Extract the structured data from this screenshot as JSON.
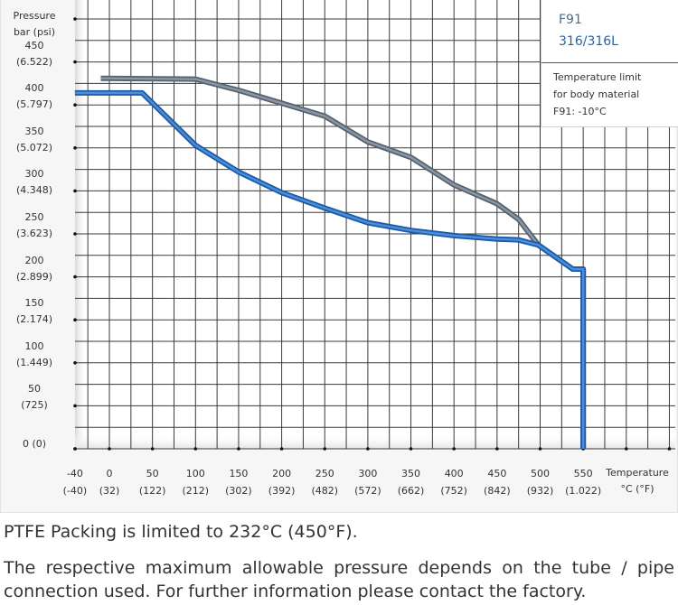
{
  "chart_data": {
    "type": "line",
    "title": "",
    "xlabel": "Temperature °C (°F)",
    "ylabel": "Pressure bar (psi)",
    "xlim": [
      -40,
      650
    ],
    "ylim": [
      0,
      520
    ],
    "grid": true,
    "grid_step_x": 25,
    "grid_step_y": 25,
    "legend_position": "top-right",
    "x_ticks": [
      {
        "c": "-40",
        "f": "(-40)",
        "value": -40
      },
      {
        "c": "0",
        "f": "(32)",
        "value": 0
      },
      {
        "c": "50",
        "f": "(122)",
        "value": 50
      },
      {
        "c": "100",
        "f": "(212)",
        "value": 100
      },
      {
        "c": "150",
        "f": "(302)",
        "value": 150
      },
      {
        "c": "200",
        "f": "(392)",
        "value": 200
      },
      {
        "c": "250",
        "f": "(482)",
        "value": 250
      },
      {
        "c": "300",
        "f": "(572)",
        "value": 300
      },
      {
        "c": "350",
        "f": "(662)",
        "value": 350
      },
      {
        "c": "400",
        "f": "(752)",
        "value": 400
      },
      {
        "c": "450",
        "f": "(842)",
        "value": 450
      },
      {
        "c": "500",
        "f": "(932)",
        "value": 500
      },
      {
        "c": "550",
        "f": "(1.022)",
        "value": 550
      }
    ],
    "y_ticks": [
      {
        "bar": "450",
        "psi": "(6.522)",
        "value": 450
      },
      {
        "bar": "400",
        "psi": "(5.797)",
        "value": 400
      },
      {
        "bar": "350",
        "psi": "(5.072)",
        "value": 350
      },
      {
        "bar": "300",
        "psi": "(4.348)",
        "value": 300
      },
      {
        "bar": "250",
        "psi": "(3.623)",
        "value": 250
      },
      {
        "bar": "200",
        "psi": "(2.899)",
        "value": 200
      },
      {
        "bar": "150",
        "psi": "(2.174)",
        "value": 150
      },
      {
        "bar": "100",
        "psi": "(1.449)",
        "value": 100
      },
      {
        "bar": "50",
        "psi": "(725)",
        "value": 50
      },
      {
        "bar": "0 (0)",
        "psi": "",
        "value": 0
      }
    ],
    "series": [
      {
        "name": "F91",
        "color": "#8a98a6",
        "edge_color": "#56636f",
        "x": [
          -10,
          100,
          150,
          200,
          250,
          300,
          350,
          400,
          450,
          475,
          498,
          538,
          550,
          550
        ],
        "y": [
          431,
          430,
          417,
          402,
          387,
          357,
          339,
          307,
          285,
          267,
          237,
          209,
          209,
          0
        ]
      },
      {
        "name": "316/316L",
        "color": "#4a8fdc",
        "edge_color": "#1d5aa6",
        "x": [
          -40,
          38,
          100,
          150,
          200,
          250,
          300,
          350,
          400,
          450,
          475,
          498,
          538,
          550,
          550
        ],
        "y": [
          414,
          414,
          353,
          322,
          298,
          280,
          263,
          254,
          248,
          244,
          243,
          237,
          209,
          209,
          0
        ]
      }
    ]
  },
  "axis": {
    "y_title_line1": "Pressure",
    "y_title_line2": "bar (psi)",
    "x_title_line1": "Temperature",
    "x_title_line2": "°C (°F)"
  },
  "legend": {
    "series_1": "F91",
    "series_1_color": "#4f6b85",
    "series_2": "316/316L",
    "series_2_color": "#2563a8",
    "note_line1": "Temperature limit",
    "note_line2": "for body material",
    "note_line3": "F91: -10°C"
  },
  "footer": {
    "line1": "PTFE Packing is limited to 232°C (450°F).",
    "line2": "The respective maximum allowable pressure depends on the tube / pipe",
    "line3": "connection used. For further information please contact the factory."
  }
}
